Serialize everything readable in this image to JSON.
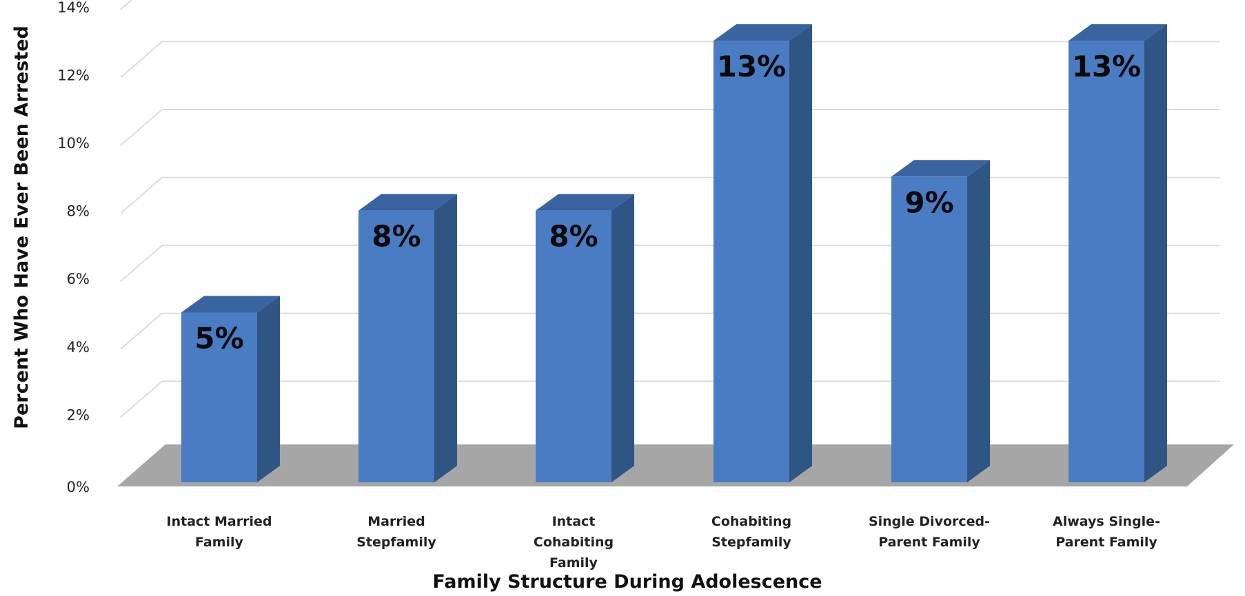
{
  "chart_data": {
    "type": "bar",
    "title": "",
    "xlabel": "Family Structure During Adolescence",
    "ylabel": "Percent Who Have Ever Been Arrested",
    "categories": [
      [
        "Intact Married",
        "Family"
      ],
      [
        "Married",
        "Stepfamily"
      ],
      [
        "Intact",
        "Cohabiting",
        "Family"
      ],
      [
        "Cohabiting",
        "Stepfamily"
      ],
      [
        "Single Divorced-",
        "Parent Family"
      ],
      [
        "Always Single-",
        "Parent Family"
      ]
    ],
    "values": [
      5,
      8,
      8,
      13,
      9,
      13
    ],
    "data_labels": [
      "5%",
      "8%",
      "8%",
      "13%",
      "9%",
      "13%"
    ],
    "yticks": [
      "0%",
      "2%",
      "4%",
      "6%",
      "8%",
      "10%",
      "12%",
      "14%"
    ],
    "ylim": [
      0,
      14
    ],
    "grid": true,
    "legend": "none",
    "style": "3d-column",
    "colors": {
      "bar_front": "#4a7cc4",
      "bar_side": "#2f5585",
      "bar_top": "#3a64a0",
      "floor": "#a6a6a6",
      "grid": "#dcdcdc"
    }
  }
}
